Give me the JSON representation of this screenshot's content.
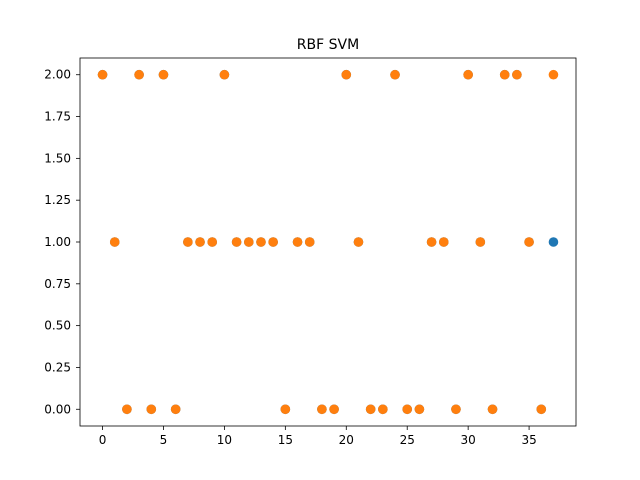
{
  "chart_data": {
    "type": "scatter",
    "title": "RBF SVM",
    "xlabel": "",
    "ylabel": "",
    "xlim": [
      -1.85,
      38.85
    ],
    "ylim": [
      -0.1,
      2.1
    ],
    "xticks": [
      0,
      5,
      10,
      15,
      20,
      25,
      30,
      35
    ],
    "xtick_labels": [
      "0",
      "5",
      "10",
      "15",
      "20",
      "25",
      "30",
      "35"
    ],
    "yticks": [
      0.0,
      0.25,
      0.5,
      0.75,
      1.0,
      1.25,
      1.5,
      1.75,
      2.0
    ],
    "ytick_labels": [
      "0.00",
      "0.25",
      "0.50",
      "0.75",
      "1.00",
      "1.25",
      "1.50",
      "1.75",
      "2.00"
    ],
    "grid": false,
    "series": [
      {
        "color": "#1f77b4",
        "x": [
          0,
          1,
          2,
          3,
          4,
          5,
          6,
          7,
          8,
          9,
          10,
          11,
          12,
          13,
          14,
          15,
          16,
          17,
          18,
          19,
          20,
          21,
          22,
          23,
          24,
          25,
          26,
          27,
          28,
          29,
          30,
          31,
          32,
          33,
          34,
          35,
          36,
          37
        ],
        "y": [
          2,
          1,
          0,
          2,
          0,
          2,
          0,
          1,
          1,
          1,
          2,
          1,
          1,
          1,
          1,
          0,
          1,
          1,
          0,
          0,
          2,
          1,
          0,
          0,
          2,
          0,
          0,
          1,
          1,
          0,
          2,
          1,
          0,
          2,
          2,
          1,
          0,
          1
        ]
      },
      {
        "color": "#ff7f0e",
        "x": [
          0,
          1,
          2,
          3,
          4,
          5,
          6,
          7,
          8,
          9,
          10,
          11,
          12,
          13,
          14,
          15,
          16,
          17,
          18,
          19,
          20,
          21,
          22,
          23,
          24,
          25,
          26,
          27,
          28,
          29,
          30,
          31,
          32,
          33,
          34,
          35,
          36,
          37
        ],
        "y": [
          2,
          1,
          0,
          2,
          0,
          2,
          0,
          1,
          1,
          1,
          2,
          1,
          1,
          1,
          1,
          0,
          1,
          1,
          0,
          0,
          2,
          1,
          0,
          0,
          2,
          0,
          0,
          1,
          1,
          0,
          2,
          1,
          0,
          2,
          2,
          1,
          0,
          2
        ]
      }
    ]
  }
}
